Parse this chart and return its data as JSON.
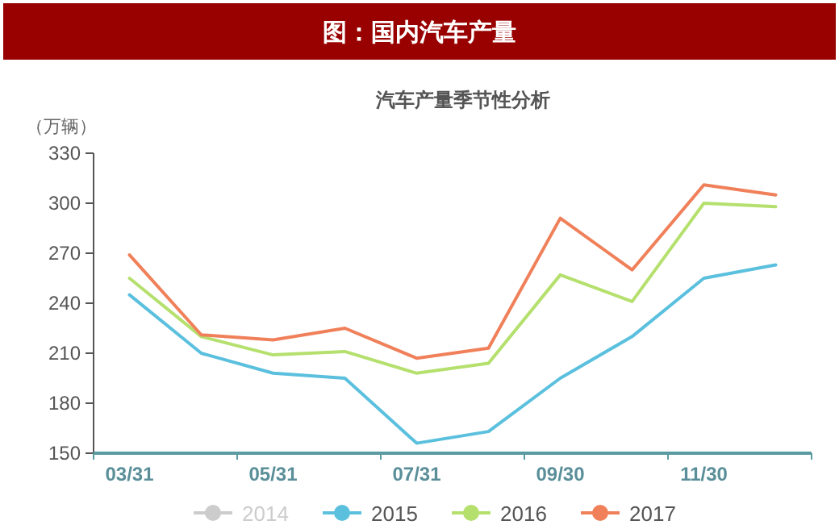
{
  "chart_data": {
    "type": "line",
    "title": "图：国内汽车产量",
    "subtitle": "汽车产量季节性分析",
    "ylabel": "（万辆）",
    "categories": [
      "03/31",
      null,
      "05/31",
      null,
      "07/31",
      null,
      "09/30",
      null,
      "11/30",
      null
    ],
    "series": [
      {
        "name": "2014",
        "color": "#cccccc",
        "values": [
          null,
          null,
          null,
          null,
          null,
          null,
          null,
          null,
          null,
          null
        ]
      },
      {
        "name": "2015",
        "color": "#5bc0de",
        "values": [
          245,
          210,
          198,
          195,
          156,
          163,
          195,
          220,
          255,
          263
        ]
      },
      {
        "name": "2016",
        "color": "#b5e06e",
        "values": [
          255,
          220,
          209,
          211,
          198,
          204,
          257,
          241,
          300,
          298
        ]
      },
      {
        "name": "2017",
        "color": "#f0805a",
        "values": [
          269,
          221,
          218,
          225,
          207,
          213,
          291,
          260,
          311,
          305
        ]
      }
    ],
    "ylim": [
      150,
      330
    ],
    "yticks": [
      150,
      180,
      210,
      240,
      270,
      300,
      330
    ],
    "grid": false,
    "legend": "bottom",
    "marker": "none",
    "line_style": "solid"
  }
}
